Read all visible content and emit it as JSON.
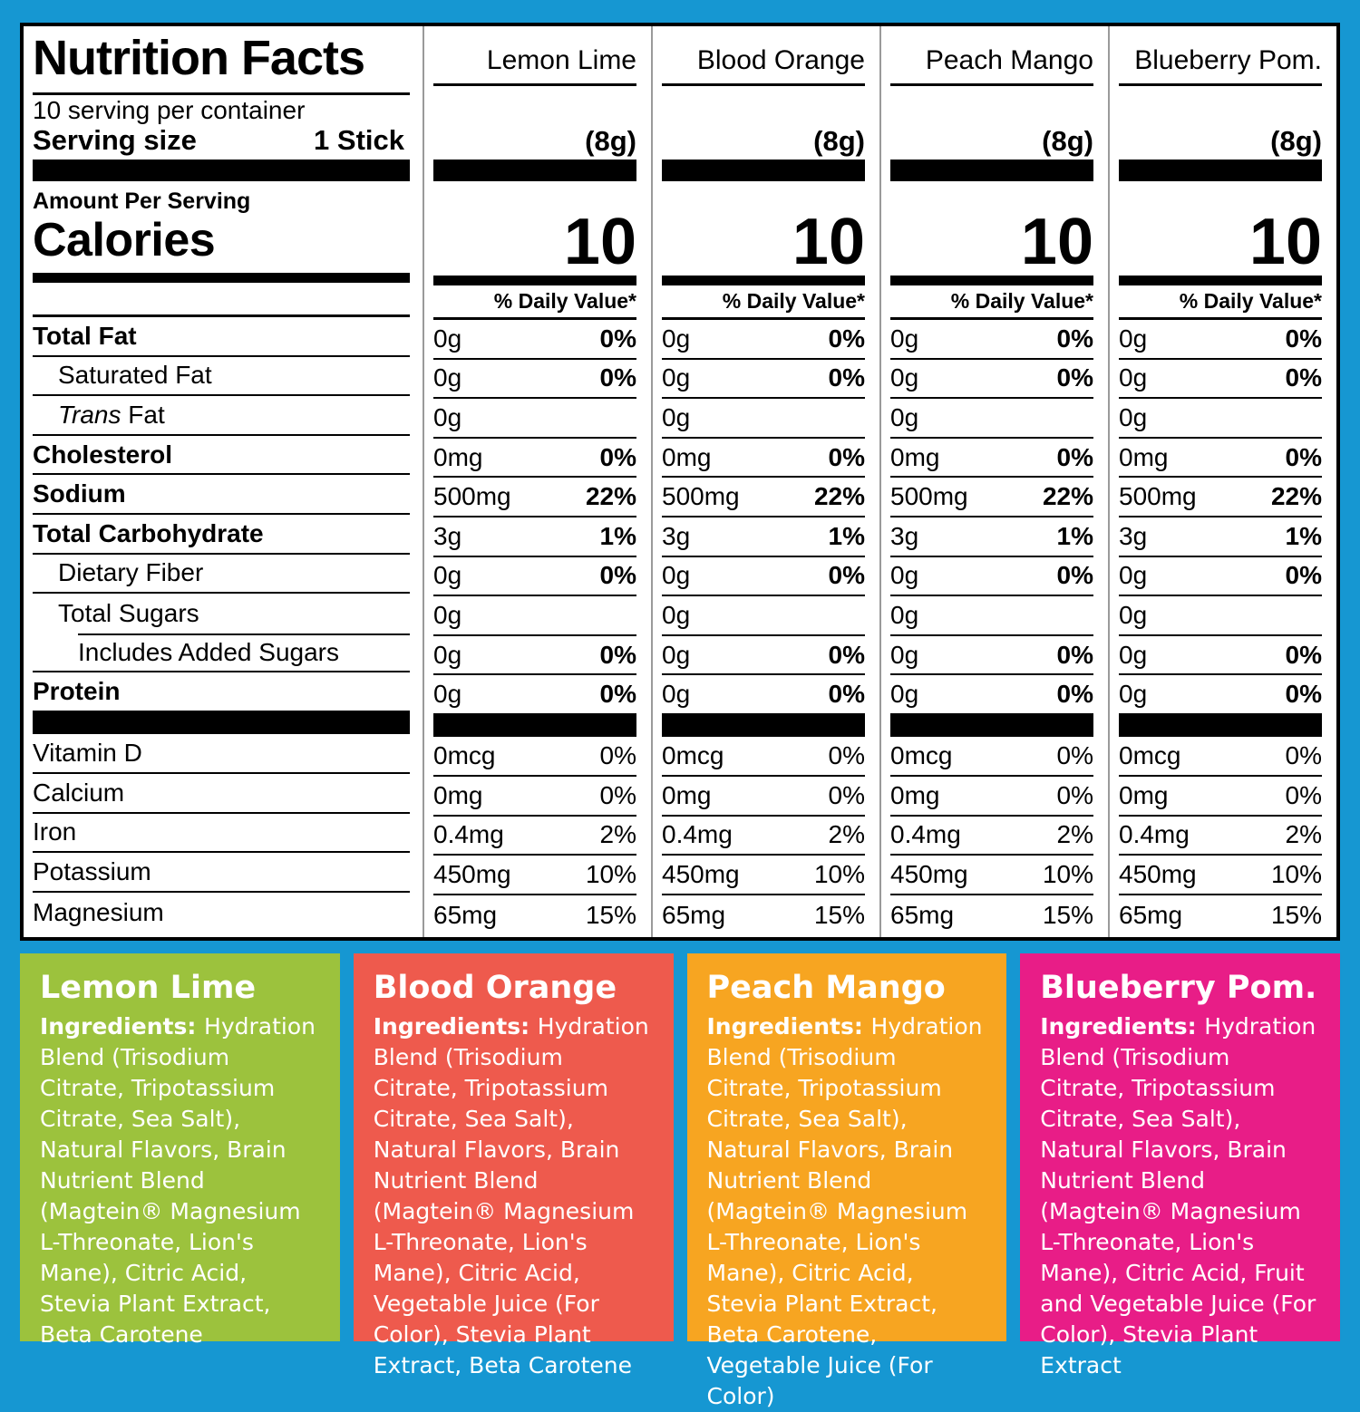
{
  "colors": {
    "background": "#1697D2",
    "panel": "#FFFFFF",
    "rule": "#000000",
    "separator": "#9A9A9A",
    "lemon_lime": "#9CC23D",
    "blood_orange": "#EE5A4D",
    "peach_mango": "#F7A521",
    "blueberry_pom": "#E81D87"
  },
  "nutrition_panel": {
    "title": "Nutrition Facts",
    "servings_per_container": "10 serving per container",
    "serving_size_label": "Serving size",
    "serving_size_value": "1 Stick",
    "amount_per_serving": "Amount Per Serving",
    "calories_label": "Calories",
    "daily_value_header": "% Daily Value*",
    "columns": [
      {
        "flavor": "Lemon Lime",
        "weight": "(8g)",
        "calories": "10"
      },
      {
        "flavor": "Blood Orange",
        "weight": "(8g)",
        "calories": "10"
      },
      {
        "flavor": "Peach Mango",
        "weight": "(8g)",
        "calories": "10"
      },
      {
        "flavor": "Blueberry Pom.",
        "weight": "(8g)",
        "calories": "10"
      }
    ],
    "rows": [
      {
        "label": "Total Fat",
        "style": "bold",
        "indent": 0,
        "amount": "0g",
        "dv": "0%"
      },
      {
        "label": "Saturated Fat",
        "style": "regular",
        "indent": 1,
        "amount": "0g",
        "dv": "0%"
      },
      {
        "label": "Trans Fat",
        "style": "regular",
        "indent": 1,
        "italic_prefix": "Trans",
        "label_rest": " Fat",
        "amount": "0g",
        "dv": ""
      },
      {
        "label": "Cholesterol",
        "style": "bold",
        "indent": 0,
        "amount": "0mg",
        "dv": "0%"
      },
      {
        "label": "Sodium",
        "style": "bold",
        "indent": 0,
        "amount": "500mg",
        "dv": "22%"
      },
      {
        "label": "Total Carbohydrate",
        "style": "bold",
        "indent": 0,
        "amount": "3g",
        "dv": "1%"
      },
      {
        "label": "Dietary Fiber",
        "style": "regular",
        "indent": 1,
        "amount": "0g",
        "dv": "0%"
      },
      {
        "label": "Total Sugars",
        "style": "regular",
        "indent": 1,
        "amount": "0g",
        "dv": "",
        "partial_rule": true
      },
      {
        "label": "Includes Added Sugars",
        "style": "regular",
        "indent": 2,
        "amount": "0g",
        "dv": "0%"
      },
      {
        "label": "Protein",
        "style": "bold",
        "indent": 0,
        "amount": "0g",
        "dv": "0%"
      }
    ],
    "vitamin_rows": [
      {
        "label": "Vitamin D",
        "amount": "0mcg",
        "dv": "0%"
      },
      {
        "label": "Calcium",
        "amount": "0mg",
        "dv": "0%"
      },
      {
        "label": "Iron",
        "amount": "0.4mg",
        "dv": "2%"
      },
      {
        "label": "Potassium",
        "amount": "450mg",
        "dv": "10%"
      },
      {
        "label": "Magnesium",
        "amount": "65mg",
        "dv": "15%"
      }
    ]
  },
  "ingredient_boxes": [
    {
      "flavor": "Lemon Lime",
      "color": "#9CC23D",
      "ingredients_label": "Ingredients:",
      "ingredients": "Hydration Blend (Trisodium Citrate, Tripotassium Citrate, Sea Salt), Natural Flavors, Brain Nutrient Blend (Magtein® Magnesium L-Threonate, Lion's Mane), Citric Acid, Stevia Plant Extract, Beta Carotene"
    },
    {
      "flavor": "Blood Orange",
      "color": "#EE5A4D",
      "ingredients_label": "Ingredients:",
      "ingredients": "Hydration Blend (Trisodium Citrate, Tripotassium Citrate, Sea Salt), Natural Flavors, Brain Nutrient Blend (Magtein® Magnesium L-Threonate, Lion's Mane), Citric Acid, Vegetable Juice (For Color), Stevia Plant Extract, Beta Carotene"
    },
    {
      "flavor": "Peach Mango",
      "color": "#F7A521",
      "ingredients_label": "Ingredients:",
      "ingredients": "Hydration Blend (Trisodium Citrate, Tripotassium Citrate, Sea Salt), Natural Flavors, Brain Nutrient Blend (Magtein® Magnesium L-Threonate, Lion's Mane), Citric Acid, Stevia Plant Extract, Beta Carotene, Vegetable Juice (For Color)"
    },
    {
      "flavor": "Blueberry Pom.",
      "color": "#E81D87",
      "ingredients_label": "Ingredients:",
      "ingredients": "Hydration Blend (Trisodium Citrate, Tripotassium Citrate, Sea Salt), Natural Flavors, Brain Nutrient Blend (Magtein® Magnesium L-Threonate, Lion's Mane), Citric Acid, Fruit and Vegetable Juice (For Color), Stevia Plant Extract"
    }
  ]
}
